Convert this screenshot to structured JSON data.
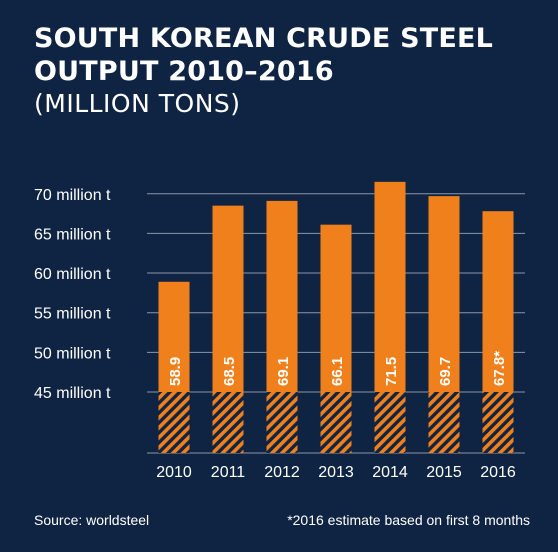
{
  "chart_data": {
    "type": "bar",
    "title": "SOUTH KOREAN CRUDE STEEL",
    "title_line2": "OUTPUT 2010–2016",
    "subtitle": "(MILLION TONS)",
    "categories": [
      "2010",
      "2011",
      "2012",
      "2013",
      "2014",
      "2015",
      "2016"
    ],
    "values": [
      58.9,
      68.5,
      69.1,
      66.1,
      71.5,
      69.7,
      67.8
    ],
    "value_labels": [
      "58.9",
      "68.5",
      "69.1",
      "66.1",
      "71.5",
      "69.7",
      "67.8*"
    ],
    "y_ticks": [
      45,
      50,
      55,
      60,
      65,
      70
    ],
    "y_tick_labels": [
      "45 million t",
      "50 million t",
      "55 million t",
      "60 million t",
      "65 million t",
      "70 million t"
    ],
    "ylim": [
      45,
      72
    ],
    "hatched_region_below": 45,
    "grid": true,
    "colors": {
      "bar": "#f0801c",
      "background": "#0f2442",
      "grid": "#8a96a8",
      "text": "#ffffff"
    }
  },
  "footer": {
    "source": "Source: worldsteel",
    "note": "*2016 estimate based on first 8 months"
  }
}
